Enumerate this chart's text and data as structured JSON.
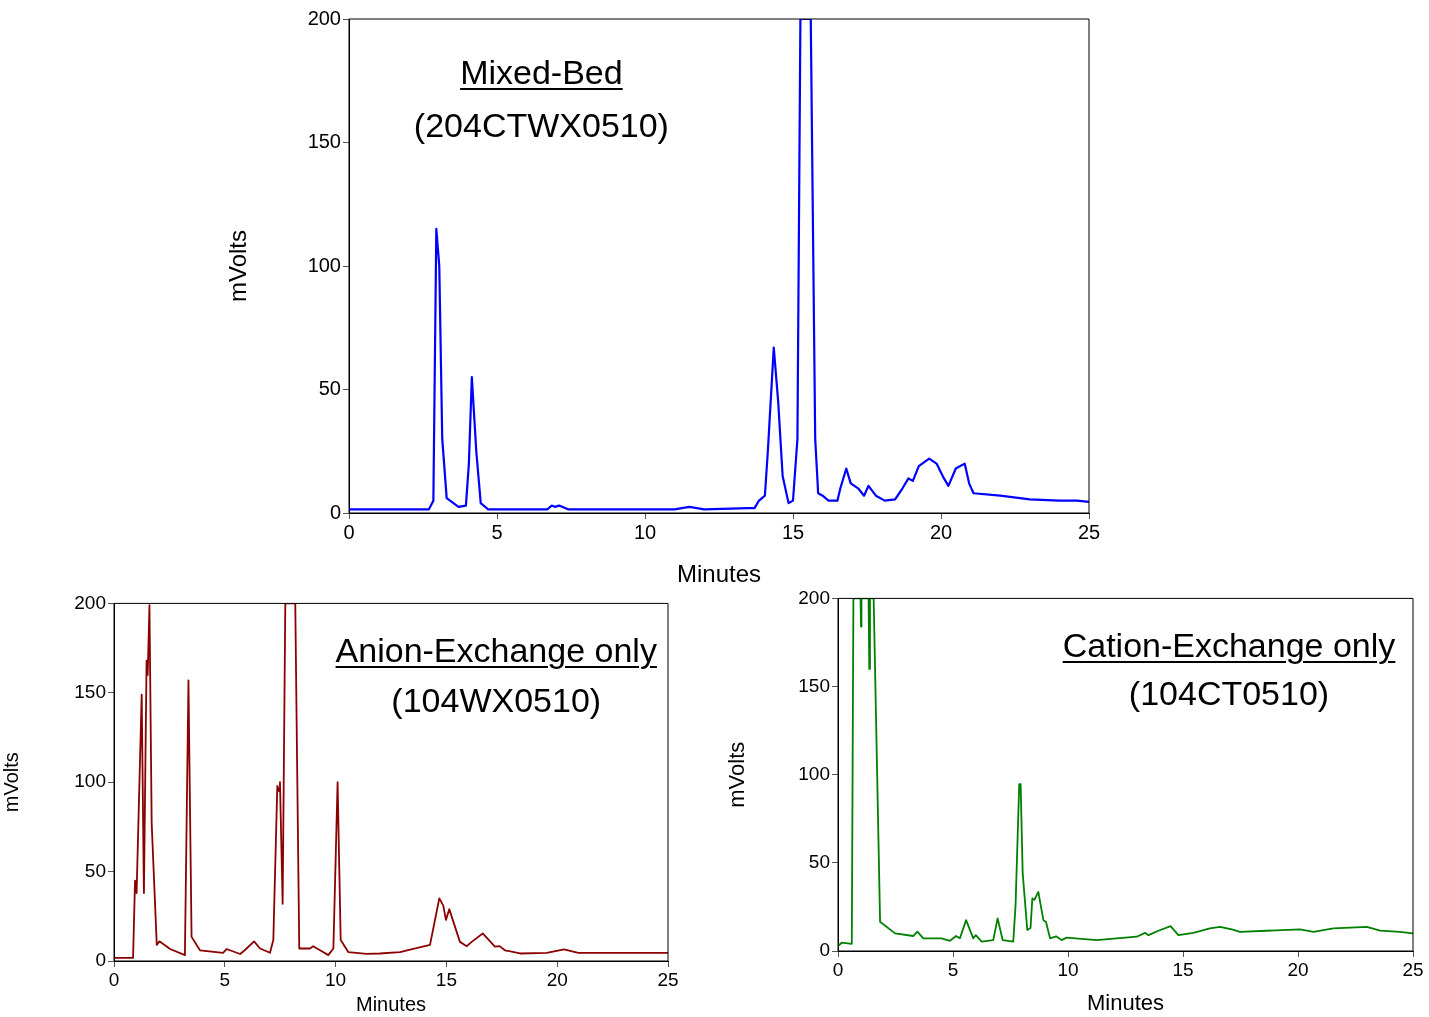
{
  "chart_data": [
    {
      "type": "line",
      "title": "Mixed-Bed",
      "subtitle": "(204CTWX0510)",
      "xlabel": "Minutes",
      "ylabel": "mVolts",
      "xlim": [
        0,
        25
      ],
      "ylim": [
        0,
        200
      ],
      "xticks": [
        0,
        5,
        10,
        15,
        20,
        25
      ],
      "yticks": [
        0,
        50,
        100,
        150,
        200
      ],
      "marker": "none",
      "series": [
        {
          "color": "#0000ff",
          "x": [
            0,
            2.7,
            2.85,
            2.95,
            3.05,
            3.15,
            3.3,
            3.7,
            3.95,
            4.05,
            4.15,
            4.3,
            4.45,
            4.7,
            6.7,
            6.85,
            6.95,
            7.1,
            7.4,
            10,
            11,
            11.5,
            12,
            13.5,
            13.7,
            13.85,
            14.05,
            14.15,
            14.35,
            14.5,
            14.65,
            14.85,
            15.0,
            15.15,
            15.25,
            15.6,
            15.75,
            15.85,
            16.0,
            16.2,
            16.5,
            16.6,
            16.8,
            16.95,
            17.2,
            17.4,
            17.55,
            17.8,
            18.1,
            18.45,
            18.7,
            18.9,
            19.05,
            19.25,
            19.6,
            19.85,
            20.1,
            20.25,
            20.5,
            20.8,
            20.95,
            21.1,
            22,
            23,
            24,
            24.6,
            25
          ],
          "values": [
            1.5,
            1.5,
            5,
            115,
            100,
            30,
            6,
            2.5,
            3,
            20,
            55,
            25,
            4,
            1.5,
            1.5,
            3,
            2.5,
            3,
            1.5,
            1.5,
            1.5,
            2.5,
            1.5,
            2,
            2,
            5,
            7,
            25,
            67,
            45,
            15,
            4,
            5,
            30,
            200,
            200,
            30,
            8,
            7,
            5,
            5,
            10,
            18,
            12,
            10,
            7,
            11,
            7,
            5,
            5.5,
            10,
            14,
            13,
            19,
            22,
            20,
            14,
            11,
            18,
            20,
            12,
            8,
            7,
            5.5,
            5,
            5,
            4.5
          ]
        }
      ]
    },
    {
      "type": "line",
      "title": "Anion-Exchange only",
      "subtitle": "(104WX0510)",
      "xlabel": "Minutes",
      "ylabel": "mVolts",
      "xlim": [
        0,
        25
      ],
      "ylim": [
        0,
        200
      ],
      "xticks": [
        0,
        5,
        10,
        15,
        20,
        25
      ],
      "yticks": [
        0,
        50,
        100,
        150,
        200
      ],
      "marker": "none",
      "series": [
        {
          "color": "#8b0000",
          "x": [
            0,
            0.86,
            0.95,
            1.02,
            1.25,
            1.35,
            1.47,
            1.52,
            1.6,
            1.7,
            1.93,
            2.05,
            2.53,
            3.2,
            3.36,
            3.5,
            3.88,
            4.92,
            5.08,
            5.69,
            5.9,
            6.32,
            6.59,
            7.04,
            7.19,
            7.37,
            7.45,
            7.49,
            7.61,
            7.73,
            8.18,
            8.36,
            8.84,
            8.99,
            9.3,
            9.67,
            9.9,
            10.09,
            10.23,
            10.57,
            11.4,
            12.0,
            12.9,
            14.26,
            14.68,
            14.86,
            14.98,
            15.13,
            15.61,
            15.92,
            16.14,
            16.64,
            17.19,
            17.4,
            17.64,
            18.32,
            19.53,
            20.31,
            20.95,
            24.94,
            25
          ],
          "values": [
            1.7,
            1.7,
            45,
            38,
            149,
            38,
            168,
            160,
            199,
            77,
            9,
            11,
            6.7,
            3.3,
            157,
            13.5,
            6,
            4.6,
            6.7,
            3.9,
            6,
            11,
            7,
            4.6,
            11.7,
            98,
            95,
            100,
            32,
            200,
            200,
            7,
            7,
            8.3,
            6,
            3.3,
            7,
            100,
            11.7,
            5,
            4,
            4.2,
            5,
            9,
            35,
            31,
            23,
            29,
            10.7,
            8.3,
            10.7,
            15.4,
            8,
            8.3,
            6,
            4.2,
            4.6,
            6.5,
            4.6,
            4.6,
            4.6
          ]
        }
      ]
    },
    {
      "type": "line",
      "title": "Cation-Exchange only",
      "subtitle": "(104CT0510)",
      "xlabel": "Minutes",
      "ylabel": "mVolts",
      "xlim": [
        0,
        25
      ],
      "ylim": [
        0,
        200
      ],
      "xticks": [
        0,
        5,
        10,
        15,
        20,
        25
      ],
      "yticks": [
        0,
        50,
        100,
        150,
        200
      ],
      "marker": "none",
      "series": [
        {
          "color": "#008000",
          "x": [
            0,
            0.16,
            0.6,
            0.67,
            0.98,
            1.0,
            1.02,
            1.33,
            1.36,
            1.39,
            1.55,
            1.83,
            2.48,
            3.27,
            3.45,
            3.71,
            4.5,
            4.87,
            5.13,
            5.3,
            5.57,
            5.88,
            5.99,
            6.25,
            6.75,
            6.94,
            7.16,
            7.62,
            7.72,
            7.88,
            7.94,
            8.03,
            8.23,
            8.37,
            8.45,
            8.54,
            8.71,
            8.93,
            9.04,
            9.22,
            9.48,
            9.72,
            9.94,
            11.25,
            12.99,
            13.35,
            13.5,
            13.93,
            14.46,
            14.8,
            15.45,
            16.17,
            16.61,
            17.12,
            17.48,
            18.64,
            20.09,
            20.67,
            21.54,
            22.99,
            23.57,
            24.43,
            25
          ],
          "values": [
            2.8,
            4.7,
            4,
            200,
            200,
            184,
            200,
            200,
            160,
            200,
            200,
            16.6,
            10,
            8.5,
            11,
            7.2,
            7.2,
            5.8,
            8.5,
            7.2,
            17.5,
            7.2,
            9,
            5.3,
            6.2,
            18.5,
            6.2,
            5.3,
            26,
            94.7,
            94.7,
            44,
            11.9,
            13,
            29.8,
            29,
            33.5,
            17.5,
            16.6,
            7.2,
            8.3,
            6.2,
            7.6,
            6.2,
            8.1,
            10.3,
            9,
            11.5,
            14.1,
            9,
            10.3,
            12.8,
            13.7,
            12.3,
            10.9,
            11.5,
            12.3,
            10.9,
            12.8,
            13.7,
            11.5,
            10.9,
            10
          ]
        }
      ]
    }
  ]
}
